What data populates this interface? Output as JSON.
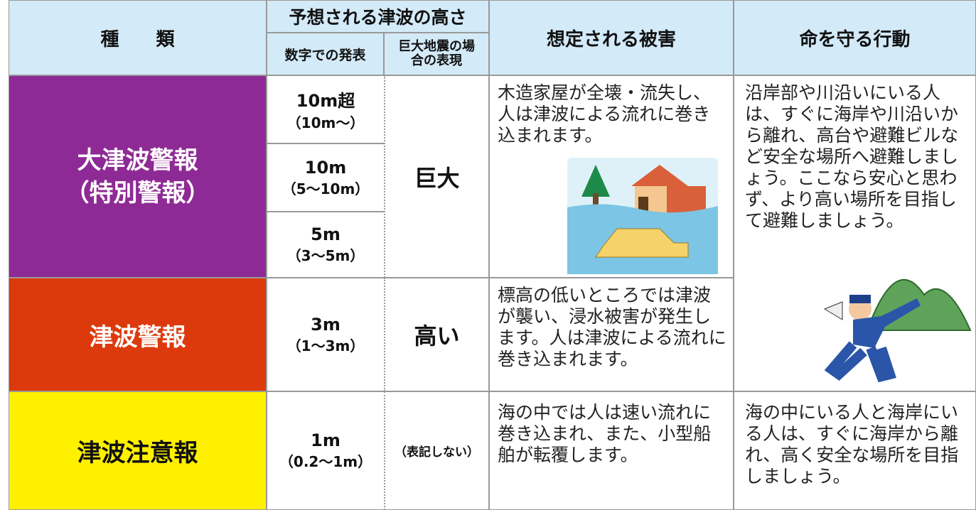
{
  "header": {
    "type": "種　　類",
    "height": "予想される津波の高さ",
    "numeric": "数字での発表",
    "qualitative": "巨大地震の場合の表現",
    "damage": "想定される被害",
    "action": "命を守る行動"
  },
  "rows": [
    {
      "name": "大津波警報",
      "sub": "（特別警報）",
      "heights": [
        {
          "main": "10m超",
          "range": "（10m〜）"
        },
        {
          "main": "10m",
          "range": "（5〜10m）"
        },
        {
          "main": "5m",
          "range": "（3〜5m）"
        }
      ],
      "expression": "巨大",
      "damage": "木造家屋が全壊・流失し、人は津波による流れに巻き込まれます。",
      "action": "沿岸部や川沿いにいる人は、すぐに海岸や川沿いから離れ、高台や避難ビルなど安全な場所へ避難しましょう。ここなら安心と思わず、より高い場所を目指して避難しましょう。"
    },
    {
      "name": "津波警報",
      "heights": [
        {
          "main": "3m",
          "range": "（1〜3m）"
        }
      ],
      "expression": "高い",
      "damage": "標高の低いところでは津波が襲い、浸水被害が発生します。人は津波による流れに巻き込まれます。"
    },
    {
      "name": "津波注意報",
      "heights": [
        {
          "main": "1m",
          "range": "（0.2〜1m）"
        }
      ],
      "expression": "（表記しない）",
      "damage": "海の中では人は速い流れに巻き込まれ、また、小型船舶が転覆します。",
      "action": "海の中にいる人と海岸にいる人は、すぐに海岸から離れ、高く安全な場所を目指しましょう。"
    }
  ]
}
